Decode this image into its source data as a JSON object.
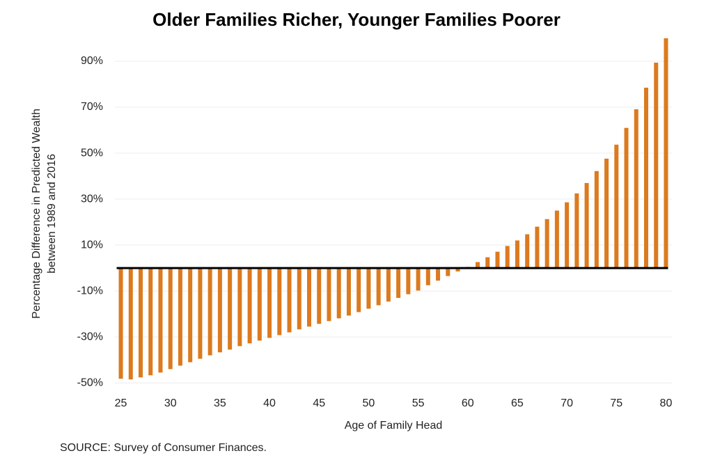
{
  "chart_data": {
    "type": "bar",
    "title": "Older Families Richer, Younger Families Poorer",
    "x_label": "Age of Family Head",
    "y_label": [
      "Percentage Difference  in Predicted Wealth",
      "between 1989 and 2016"
    ],
    "source": "SOURCE:  Survey of Consumer  Finances.",
    "color": "#dc7a1e",
    "grid": true,
    "x": [
      25,
      26,
      27,
      28,
      29,
      30,
      31,
      32,
      33,
      34,
      35,
      36,
      37,
      38,
      39,
      40,
      41,
      42,
      43,
      44,
      45,
      46,
      47,
      48,
      49,
      50,
      51,
      52,
      53,
      54,
      55,
      56,
      57,
      58,
      59,
      60,
      61,
      62,
      63,
      64,
      65,
      66,
      67,
      68,
      69,
      70,
      71,
      72,
      73,
      74,
      75,
      76,
      77,
      78,
      79,
      80
    ],
    "values": [
      -48.2,
      -48.5,
      -47.6,
      -46.7,
      -45.5,
      -44,
      -42.5,
      -41,
      -39.5,
      -38,
      -36.7,
      -35.5,
      -34,
      -32.8,
      -31.6,
      -30.4,
      -29.2,
      -28,
      -26.7,
      -25.5,
      -24.3,
      -23.1,
      -21.9,
      -20.7,
      -19.2,
      -17.7,
      -16.2,
      -14.6,
      -13,
      -11.4,
      -9.8,
      -7.5,
      -5.5,
      -3.5,
      -1.5,
      0.5,
      2.6,
      4.7,
      7.1,
      9.6,
      12,
      14.7,
      18,
      21.3,
      25,
      28.6,
      32.5,
      37,
      42.2,
      47.6,
      53.7,
      61,
      69.1,
      78.5,
      89.4,
      100
    ],
    "xlim": [
      24.4,
      80.6
    ],
    "xticks": [
      25,
      30,
      35,
      40,
      45,
      50,
      55,
      60,
      65,
      70,
      75,
      80
    ],
    "ylim": [
      -53,
      100
    ],
    "yticks": [
      {
        "value": -50,
        "label": "-50%"
      },
      {
        "value": -30,
        "label": "-30%"
      },
      {
        "value": -10,
        "label": "-10%"
      },
      {
        "value": 10,
        "label": "10%"
      },
      {
        "value": 30,
        "label": "30%"
      },
      {
        "value": 50,
        "label": "50%"
      },
      {
        "value": 70,
        "label": "70%"
      },
      {
        "value": 90,
        "label": "90%"
      }
    ]
  }
}
